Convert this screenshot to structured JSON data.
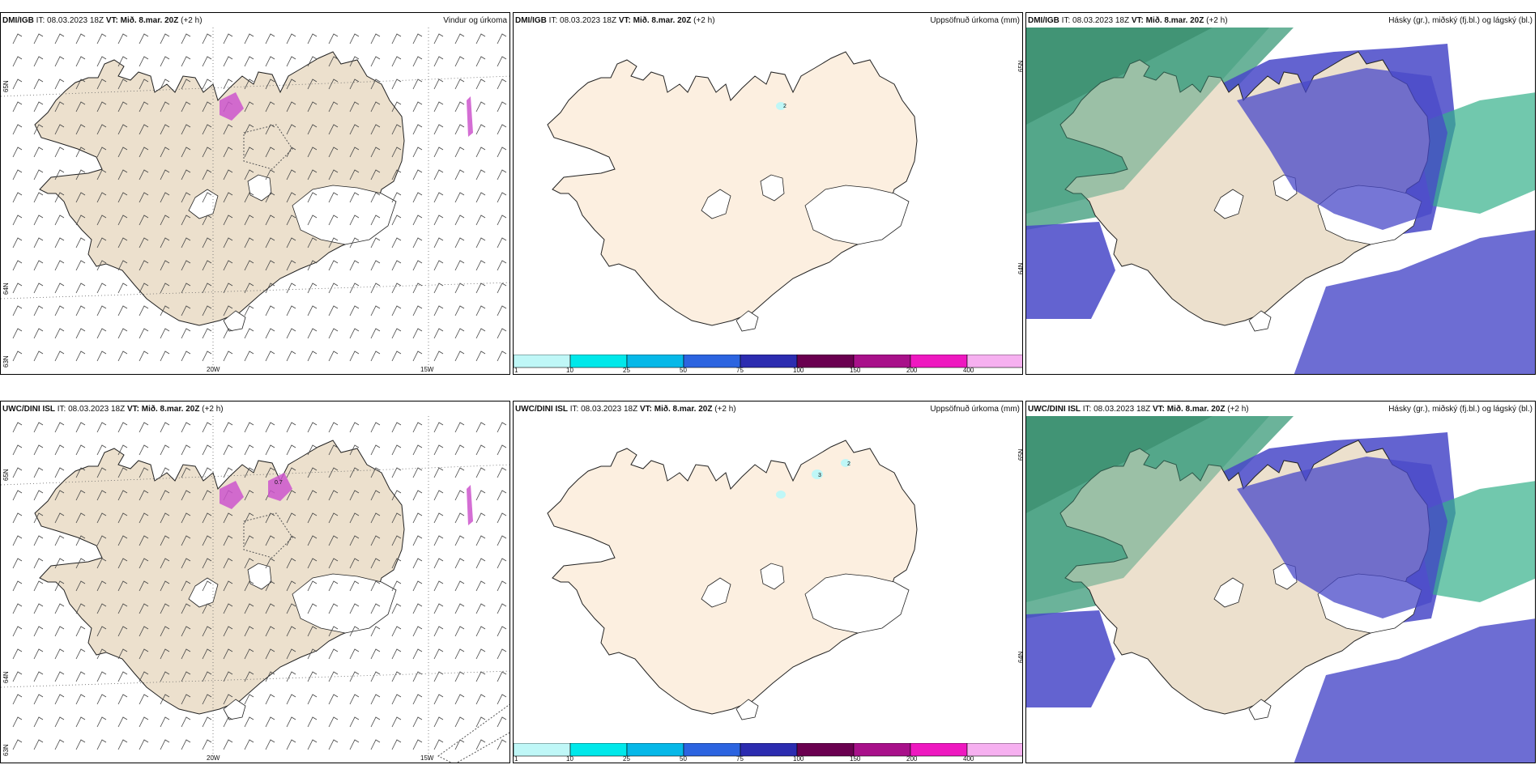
{
  "colors": {
    "land": "#ece0cd",
    "land_light": "#fcefe0",
    "precip_purple": "#cc55cc",
    "snow_blue": "#4848c8",
    "rain_green": "#3a9a78"
  },
  "panels": [
    {
      "model": "DMI/IGB",
      "it_label": "IT:",
      "it": "08.03.2023 18Z",
      "vt_label": "VT:",
      "vt": "Mið. 8.mar. 20Z",
      "lead": "(+2 h)",
      "title": "Vindur og úrkoma",
      "lat_labels": [
        "65N",
        "64N",
        "63N"
      ],
      "lon_labels": [
        "20W",
        "15W"
      ]
    },
    {
      "model": "DMI/IGB",
      "it_label": "IT:",
      "it": "08.03.2023 18Z",
      "vt_label": "VT:",
      "vt": "Mið. 8.mar. 20Z",
      "lead": "(+2 h)",
      "title": "Uppsöfnuð úrkoma (mm)",
      "lat_labels": [
        "65N",
        "64N"
      ],
      "contour_labels": [
        "2"
      ]
    },
    {
      "model": "DMI/IGB",
      "it_label": "IT:",
      "it": "08.03.2023 18Z",
      "vt_label": "VT:",
      "vt": "Mið. 8.mar. 20Z",
      "lead": "(+2 h)",
      "title": "Hásky (gr.), miðský (fj.bl.) og lágský (bl.)"
    },
    {
      "model": "UWC/DINI ISL",
      "it_label": "IT:",
      "it": "08.03.2023 18Z",
      "vt_label": "VT:",
      "vt": "Mið. 8.mar. 20Z",
      "lead": "(+2 h)",
      "title": "",
      "lat_labels": [
        "65N",
        "64N",
        "63N"
      ],
      "lon_labels": [
        "20W",
        "15W"
      ],
      "contour_labels": [
        "0.7"
      ]
    },
    {
      "model": "UWC/DINI ISL",
      "it_label": "IT:",
      "it": "08.03.2023 18Z",
      "vt_label": "VT:",
      "vt": "Mið. 8.mar. 20Z",
      "lead": "(+2 h)",
      "title": "Uppsöfnuð úrkoma (mm)",
      "lat_labels": [
        "65N",
        "64N"
      ],
      "contour_labels": [
        "3",
        "2"
      ]
    },
    {
      "model": "UWC/DINI ISL",
      "it_label": "IT:",
      "it": "08.03.2023 18Z",
      "vt_label": "VT:",
      "vt": "Mið. 8.mar. 20Z",
      "lead": "(+2 h)",
      "title": "Hásky (gr.), miðský (fj.bl.) og lágský (bl.)"
    }
  ],
  "colorbar": {
    "ticks": [
      "1",
      "10",
      "25",
      "50",
      "75",
      "100",
      "150",
      "200",
      "400"
    ],
    "colors": [
      "#bff7f7",
      "#00e8ea",
      "#06b8e8",
      "#2c64e0",
      "#2c2cb0",
      "#6a0050",
      "#a8108a",
      "#ee18c0",
      "#f6b0f0"
    ]
  }
}
